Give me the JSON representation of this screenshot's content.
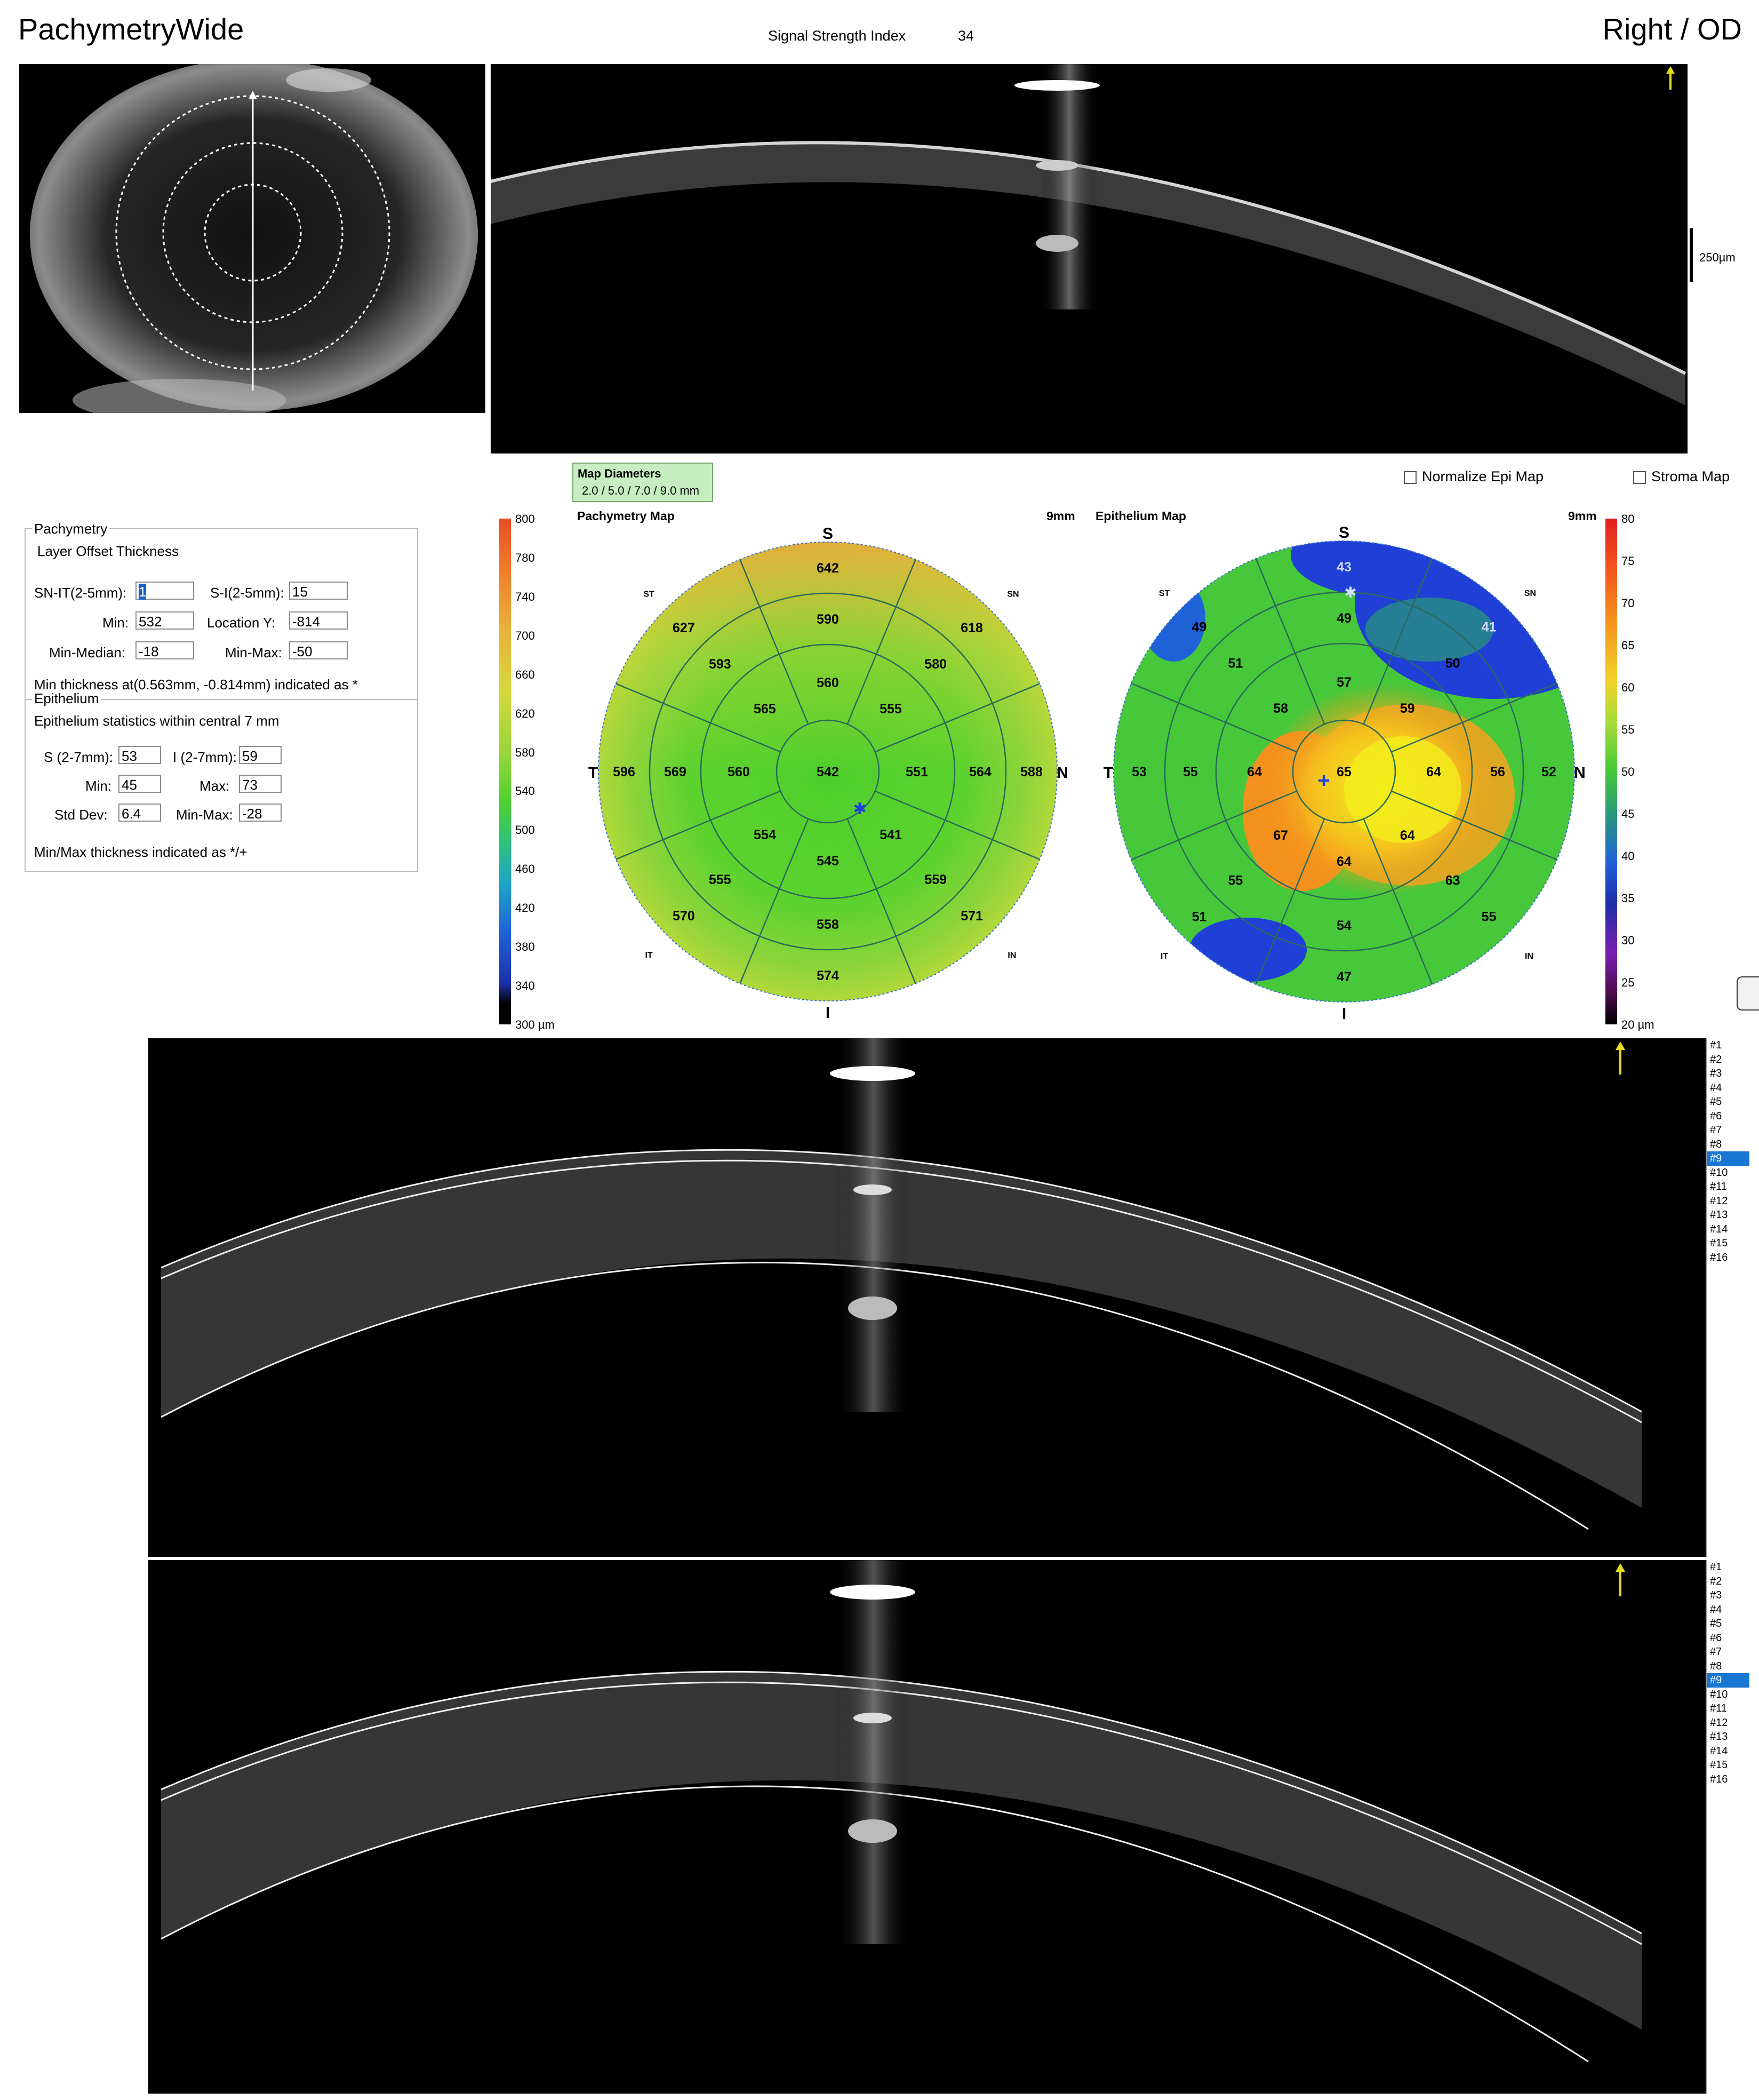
{
  "header": {
    "app_title": "PachymetryWide",
    "signal_strength_label": "Signal Strength Index",
    "signal_strength_value": "34",
    "eye": "Right / OD"
  },
  "scan_scale_label": "250µm",
  "pachymetry_panel": {
    "group_label": "Pachymetry",
    "subheader": "Layer  Offset  Thickness",
    "fields": {
      "sn_it_label": "SN-IT(2-5mm):",
      "sn_it_value": "1",
      "s_i_label": "S-I(2-5mm):",
      "s_i_value": "15",
      "min_label": "Min:",
      "min_value": "532",
      "location_y_label": "Location Y:",
      "location_y_value": "-814",
      "min_median_label": "Min-Median:",
      "min_median_value": "-18",
      "min_max_label": "Min-Max:",
      "min_max_value": "-50"
    },
    "min_thickness_note": "Min thickness at(0.563mm, -0.814mm) indicated as *"
  },
  "epithelium_panel": {
    "group_label": "Epithelium",
    "stats_title": "Epithelium statistics within central 7 mm",
    "fields": {
      "s_label": "S (2-7mm):",
      "s_value": "53",
      "i_label": "I (2-7mm):",
      "i_value": "59",
      "min_label": "Min:",
      "min_value": "45",
      "max_label": "Max:",
      "max_value": "73",
      "std_label": "Std Dev:",
      "std_value": "6.4",
      "minmax_label": "Min-Max:",
      "minmax_value": "-28"
    },
    "note": "Min/Max thickness indicated as */+"
  },
  "map_diameters": {
    "title": "Map Diameters",
    "values": "2.0 / 5.0 / 7.0 / 9.0 mm"
  },
  "options": {
    "normalize_epi": "Normalize Epi Map",
    "stroma": "Stroma Map"
  },
  "pachymetry_map": {
    "title": "Pachymetry Map",
    "size": "9mm",
    "orient": {
      "S": "S",
      "I": "I",
      "T": "T",
      "N": "N",
      "ST": "ST",
      "SN": "SN",
      "IT": "IT",
      "IN": "IN"
    },
    "center": "542",
    "ring1": [
      "560",
      "555",
      "551",
      "541",
      "545",
      "554",
      "560",
      "565"
    ],
    "ring2": [
      "590",
      "580",
      "564",
      "559",
      "558",
      "555",
      "569",
      "593"
    ],
    "ring3": [
      "642",
      "618",
      "588",
      "571",
      "574",
      "570",
      "596",
      "627"
    ],
    "scale_labels": [
      "800",
      "780",
      "740",
      "700",
      "660",
      "620",
      "580",
      "540",
      "500",
      "460",
      "420",
      "380",
      "340",
      "300 µm"
    ],
    "colors": {
      "outer_top": "#e8a93a",
      "base": "#59d12e",
      "light": "#a9dc3a"
    }
  },
  "epithelium_map": {
    "title": "Epithelium Map",
    "size": "9mm",
    "orient": {
      "S": "S",
      "I": "I",
      "T": "T",
      "N": "N",
      "ST": "ST",
      "SN": "SN",
      "IT": "IT",
      "IN": "IN"
    },
    "center": "65",
    "ring1": [
      "57",
      "59",
      "64",
      "64",
      "64",
      "67",
      "64",
      "58"
    ],
    "ring2": [
      "49",
      "50",
      "56",
      "63",
      "54",
      "55",
      "55",
      "51"
    ],
    "ring3": [
      "43",
      "41",
      "52",
      "55",
      "47",
      "51",
      "53",
      "49"
    ],
    "scale_labels": [
      "80",
      "75",
      "70",
      "65",
      "60",
      "55",
      "50",
      "45",
      "40",
      "35",
      "30",
      "25",
      "20 µm"
    ],
    "colors": {
      "blue": "#1f3fd6",
      "orange": "#f4901e",
      "yellow": "#f3ee1c",
      "green": "#46c83a"
    }
  },
  "scan_list": [
    "#1",
    "#2",
    "#3",
    "#4",
    "#5",
    "#6",
    "#7",
    "#8",
    "#9",
    "#10",
    "#11",
    "#12",
    "#13",
    "#14",
    "#15",
    "#16"
  ],
  "selected_scan": "#9"
}
